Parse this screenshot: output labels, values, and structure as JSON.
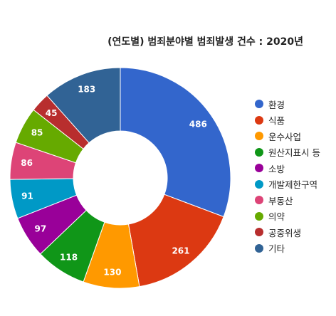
{
  "chart_data": {
    "type": "pie",
    "donut": true,
    "title": "(연도별) 범죄분야별 범죄발생 건수 : 2020년",
    "categories": [
      "환경",
      "식품",
      "운수사업",
      "원산지표시 등",
      "소방",
      "개발제한구역",
      "부동산",
      "의약",
      "공중위생",
      "기타"
    ],
    "values": [
      486,
      261,
      130,
      118,
      97,
      91,
      86,
      85,
      45,
      183
    ],
    "colors": [
      "#3366cc",
      "#dc3912",
      "#ff9900",
      "#109618",
      "#990099",
      "#0099c6",
      "#dd4477",
      "#66aa00",
      "#b82e2e",
      "#316395"
    ],
    "legend_position": "right"
  }
}
